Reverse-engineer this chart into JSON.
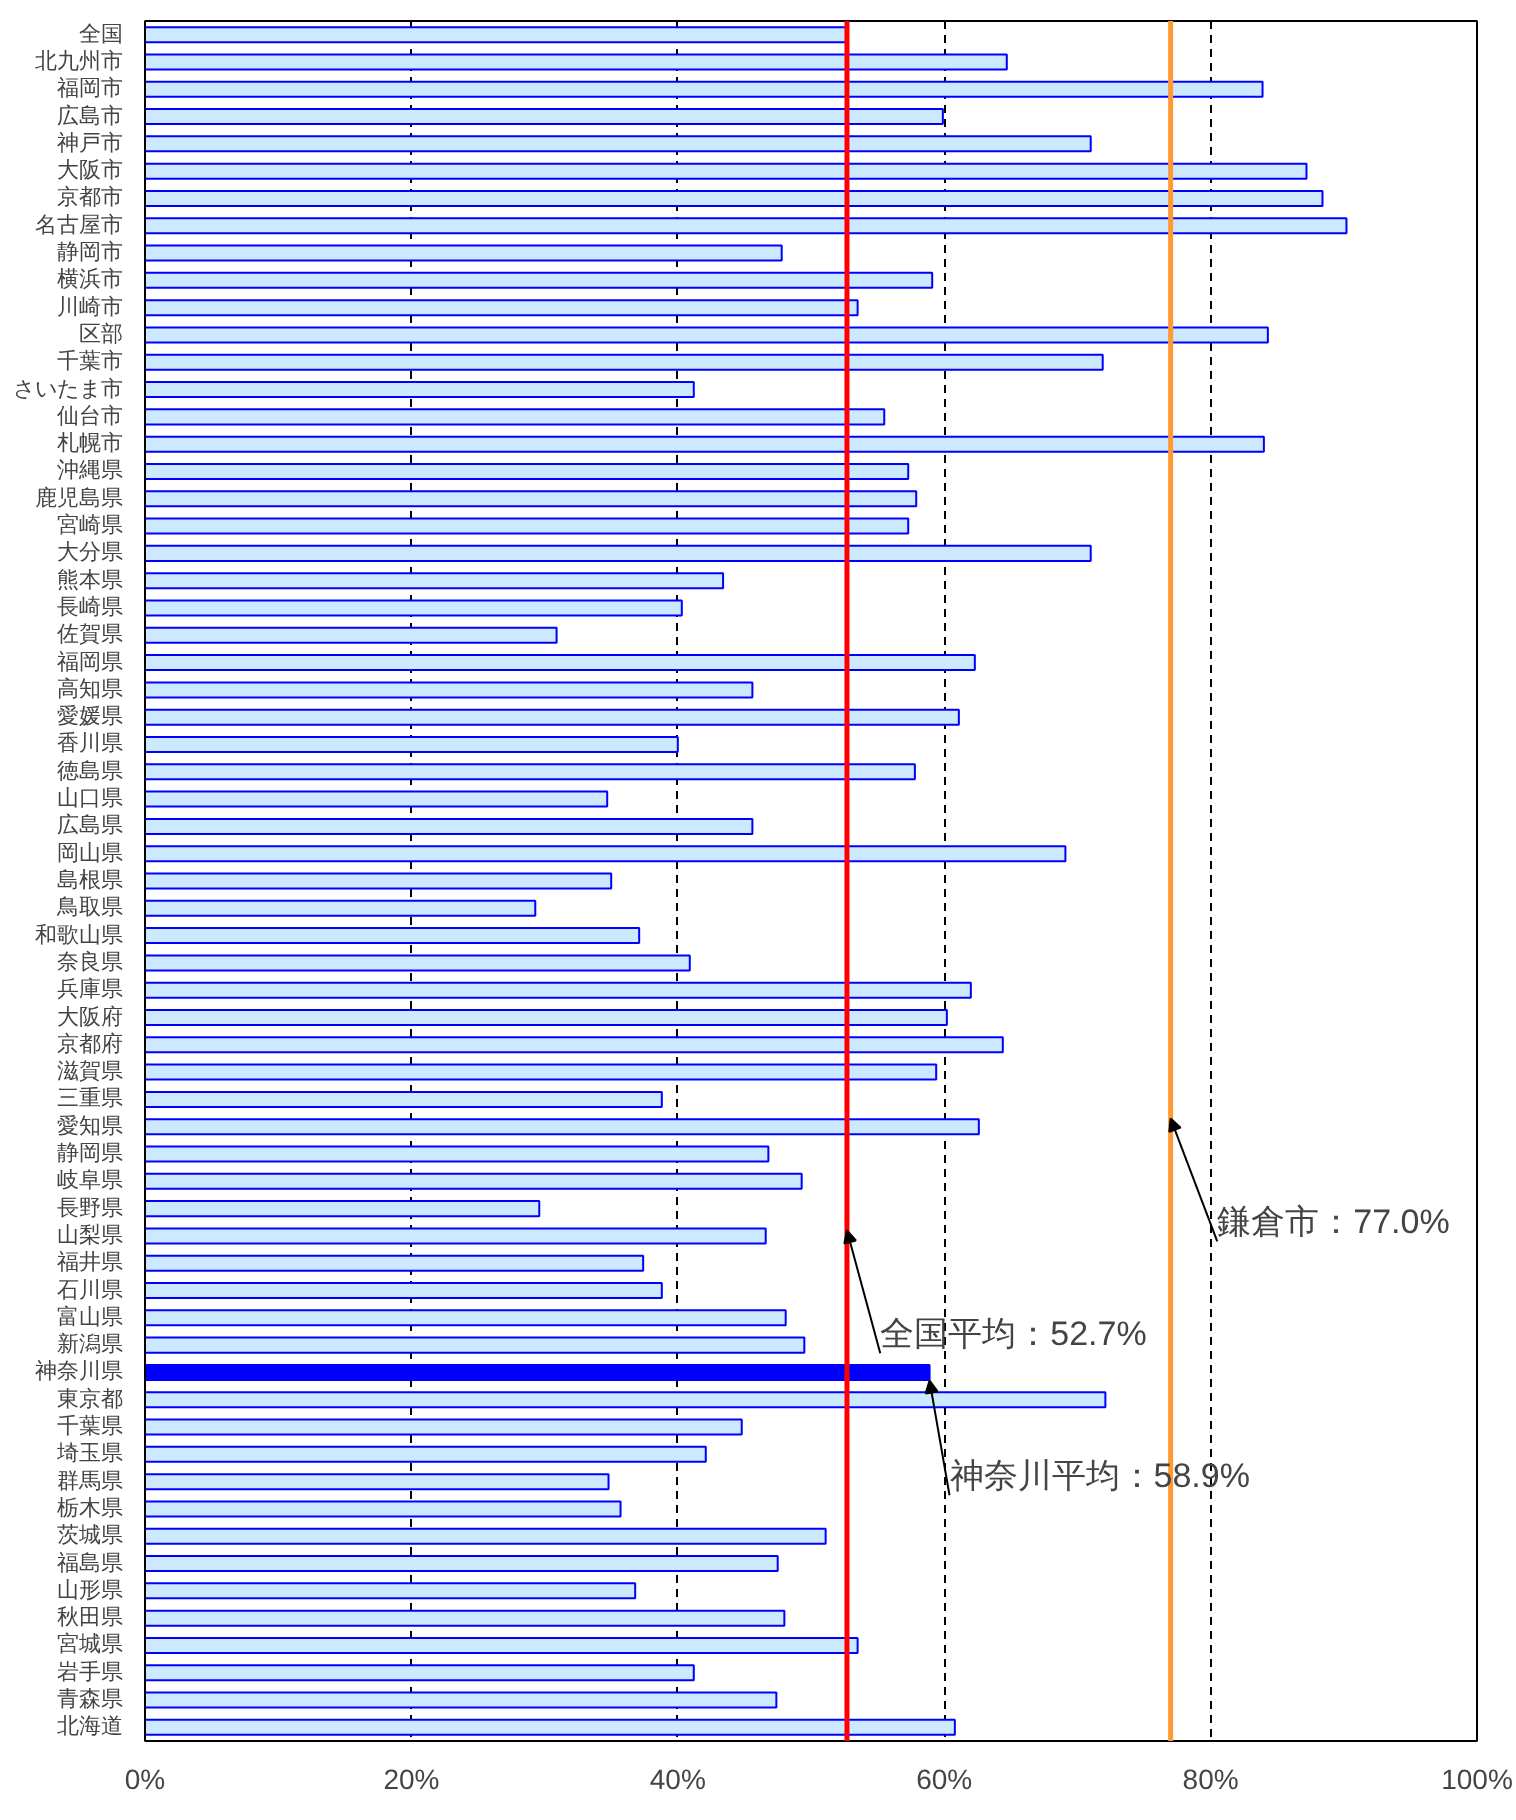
{
  "chart_data": {
    "type": "bar",
    "orientation": "horizontal",
    "categories": [
      "全国",
      "北九州市",
      "福岡市",
      "広島市",
      "神戸市",
      "大阪市",
      "京都市",
      "名古屋市",
      "静岡市",
      "横浜市",
      "川崎市",
      "区部",
      "千葉市",
      "さいたま市",
      "仙台市",
      "札幌市",
      "沖縄県",
      "鹿児島県",
      "宮崎県",
      "大分県",
      "熊本県",
      "長崎県",
      "佐賀県",
      "福岡県",
      "高知県",
      "愛媛県",
      "香川県",
      "徳島県",
      "山口県",
      "広島県",
      "岡山県",
      "島根県",
      "鳥取県",
      "和歌山県",
      "奈良県",
      "兵庫県",
      "大阪府",
      "京都府",
      "滋賀県",
      "三重県",
      "愛知県",
      "静岡県",
      "岐阜県",
      "長野県",
      "山梨県",
      "福井県",
      "石川県",
      "富山県",
      "新潟県",
      "神奈川県",
      "東京都",
      "千葉県",
      "埼玉県",
      "群馬県",
      "栃木県",
      "茨城県",
      "福島県",
      "山形県",
      "秋田県",
      "宮城県",
      "岩手県",
      "青森県",
      "北海道"
    ],
    "values": [
      52.7,
      64.7,
      83.9,
      59.9,
      71.0,
      87.2,
      88.4,
      90.2,
      47.8,
      59.1,
      53.5,
      84.3,
      71.9,
      41.2,
      55.5,
      84.0,
      57.3,
      57.9,
      57.3,
      71.0,
      43.4,
      40.3,
      30.9,
      62.3,
      45.6,
      61.1,
      40.0,
      57.8,
      34.7,
      45.6,
      69.1,
      35.0,
      29.3,
      37.1,
      40.9,
      62.0,
      60.2,
      64.4,
      59.4,
      38.8,
      62.6,
      46.8,
      49.3,
      29.6,
      46.6,
      37.4,
      38.8,
      48.1,
      49.5,
      58.9,
      72.1,
      44.8,
      42.1,
      34.8,
      35.7,
      51.1,
      47.5,
      36.8,
      48.0,
      53.5,
      41.2,
      47.4,
      60.8
    ],
    "colors": [
      "#cce9ff",
      "#cce9ff",
      "#cce9ff",
      "#cce9ff",
      "#cce9ff",
      "#cce9ff",
      "#cce9ff",
      "#cce9ff",
      "#cce9ff",
      "#cce9ff",
      "#cce9ff",
      "#cce9ff",
      "#cce9ff",
      "#cce9ff",
      "#cce9ff",
      "#cce9ff",
      "#cce9ff",
      "#cce9ff",
      "#cce9ff",
      "#cce9ff",
      "#cce9ff",
      "#cce9ff",
      "#cce9ff",
      "#cce9ff",
      "#cce9ff",
      "#cce9ff",
      "#cce9ff",
      "#cce9ff",
      "#cce9ff",
      "#cce9ff",
      "#cce9ff",
      "#cce9ff",
      "#cce9ff",
      "#cce9ff",
      "#cce9ff",
      "#cce9ff",
      "#cce9ff",
      "#cce9ff",
      "#cce9ff",
      "#cce9ff",
      "#cce9ff",
      "#cce9ff",
      "#cce9ff",
      "#cce9ff",
      "#cce9ff",
      "#cce9ff",
      "#cce9ff",
      "#cce9ff",
      "#cce9ff",
      "#0000ff",
      "#cce9ff",
      "#cce9ff",
      "#cce9ff",
      "#cce9ff",
      "#cce9ff",
      "#cce9ff",
      "#cce9ff",
      "#cce9ff",
      "#cce9ff",
      "#cce9ff",
      "#cce9ff",
      "#cce9ff",
      "#cce9ff"
    ],
    "xlim": [
      0,
      100
    ],
    "xticks": [
      {
        "value": 0,
        "label": "0%"
      },
      {
        "value": 20,
        "label": "20%"
      },
      {
        "value": 40,
        "label": "40%"
      },
      {
        "value": 60,
        "label": "60%"
      },
      {
        "value": 80,
        "label": "80%"
      },
      {
        "value": 100,
        "label": "100%"
      }
    ],
    "grid": "x",
    "ref_lines": [
      {
        "axis": "x",
        "value": 52.7,
        "label": "全国平均：52.7%",
        "color": "#ff0000"
      },
      {
        "axis": "x",
        "value": 77.0,
        "label": "鎌倉市：77.0%",
        "color": "#ff9933"
      }
    ],
    "annotations": [
      {
        "text": "神奈川平均：58.9%",
        "x": 58.9,
        "y": "神奈川県"
      }
    ]
  }
}
